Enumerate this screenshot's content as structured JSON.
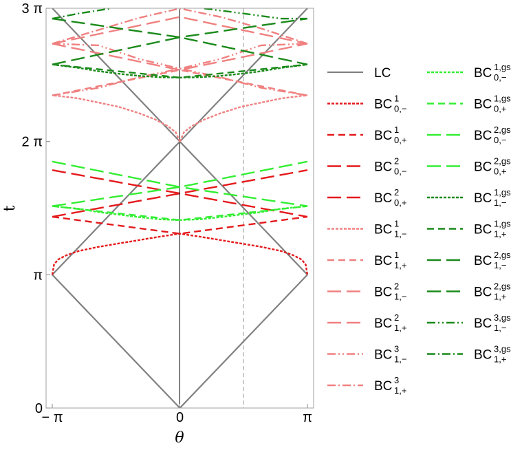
{
  "chart_data": {
    "type": "line",
    "xlabel": "θ",
    "ylabel": "t",
    "xlim": [
      -3.14159,
      3.14159
    ],
    "ylim": [
      0,
      9.42478
    ],
    "x_ticks": [
      {
        "value": -3.14159,
        "label": "− π"
      },
      {
        "value": 0,
        "label": "0"
      },
      {
        "value": 3.14159,
        "label": "π"
      }
    ],
    "y_ticks": [
      {
        "value": 0,
        "label": "0"
      },
      {
        "value": 3.14159,
        "label": "π"
      },
      {
        "value": 6.28319,
        "label": "2 π"
      },
      {
        "value": 9.42478,
        "label": "3 π"
      }
    ],
    "reference_lines": [
      {
        "axis": "x",
        "value": 0,
        "color": "#000000",
        "style": "solid"
      },
      {
        "axis": "x",
        "value": 1.5708,
        "color": "#b3b3b3",
        "style": "dashed"
      }
    ],
    "grid": false,
    "legend_position": "right",
    "series": [
      {
        "name": "LC",
        "base": "LC",
        "sup": "",
        "sub": "",
        "color": "#808080",
        "dash": "solid",
        "segments": [
          {
            "x": [
              -3.14159,
              0,
              3.14159
            ],
            "y": [
              3.14159,
              0,
              3.14159
            ]
          },
          {
            "x": [
              -3.14159,
              0,
              3.14159
            ],
            "y": [
              3.14159,
              6.28319,
              3.14159
            ]
          },
          {
            "x": [
              -3.14159,
              0,
              3.14159
            ],
            "y": [
              9.42478,
              6.28319,
              9.42478
            ]
          }
        ]
      },
      {
        "name": "BC^1_{0,-}",
        "base": "BC",
        "sup": "1",
        "sub": "0,−",
        "color": "#e41a1c",
        "dash": "dot",
        "segments": [
          {
            "x": [
              -3.14159,
              -3.1,
              -3.0,
              -2.8,
              -2.5,
              -2.0,
              -1.5,
              -1.0,
              -0.5,
              0,
              0.5,
              1.0,
              1.5,
              2.0,
              2.5,
              2.8,
              3.0,
              3.1,
              3.14159
            ],
            "y": [
              3.14,
              3.38,
              3.5,
              3.6,
              3.7,
              3.8,
              3.88,
              3.96,
              4.04,
              4.11,
              4.04,
              3.96,
              3.88,
              3.8,
              3.7,
              3.6,
              3.5,
              3.38,
              3.14
            ]
          }
        ]
      },
      {
        "name": "BC^1_{0,+}",
        "base": "BC",
        "sup": "1",
        "sub": "0,+",
        "color": "#e41a1c",
        "dash": "dash",
        "segments": [
          {
            "x": [
              -3.14159,
              0,
              3.14159
            ],
            "y": [
              4.51,
              4.11,
              4.51
            ]
          }
        ]
      },
      {
        "name": "BC^2_{0,-}",
        "base": "BC",
        "sup": "2",
        "sub": "0,−",
        "color": "#e41a1c",
        "dash": "longdash",
        "segments": [
          {
            "x": [
              -3.14159,
              0,
              3.14159
            ],
            "y": [
              4.51,
              5.06,
              4.51
            ]
          }
        ]
      },
      {
        "name": "BC^2_{0,+}",
        "base": "BC",
        "sup": "2",
        "sub": "0,+",
        "color": "#e41a1c",
        "dash": "longdash",
        "segments": [
          {
            "x": [
              -3.14159,
              0,
              3.14159
            ],
            "y": [
              5.61,
              5.06,
              5.61
            ]
          }
        ]
      },
      {
        "name": "BC^1_{1,-}",
        "base": "BC",
        "sup": "1",
        "sub": "1,−",
        "color": "#f08080",
        "dash": "dot",
        "segments": [
          {
            "x": [
              0,
              0.1,
              0.3,
              0.6,
              1.0,
              1.5,
              2.0,
              2.5,
              3.0,
              3.14159
            ],
            "y": [
              6.28,
              6.5,
              6.65,
              6.8,
              6.95,
              7.1,
              7.2,
              7.3,
              7.36,
              7.37
            ]
          },
          {
            "x": [
              0,
              -0.1,
              -0.3,
              -0.6,
              -1.0,
              -1.5,
              -2.0,
              -2.5,
              -3.0,
              -3.14159
            ],
            "y": [
              6.28,
              6.5,
              6.65,
              6.8,
              6.95,
              7.1,
              7.2,
              7.3,
              7.36,
              7.37
            ]
          }
        ]
      },
      {
        "name": "BC^1_{1,+}",
        "base": "BC",
        "sup": "1",
        "sub": "1,+",
        "color": "#f08080",
        "dash": "dash",
        "segments": [
          {
            "x": [
              -3.14159,
              0,
              3.14159
            ],
            "y": [
              7.37,
              7.97,
              7.37
            ]
          }
        ]
      },
      {
        "name": "BC^2_{1,-}",
        "base": "BC",
        "sup": "2",
        "sub": "1,−",
        "color": "#f08080",
        "dash": "longdash",
        "segments": [
          {
            "x": [
              -3.14159,
              0,
              3.14159
            ],
            "y": [
              8.59,
              7.97,
              8.59
            ]
          }
        ]
      },
      {
        "name": "BC^2_{1,+}",
        "base": "BC",
        "sup": "2",
        "sub": "1,+",
        "color": "#f08080",
        "dash": "longdash",
        "segments": [
          {
            "x": [
              -3.14159,
              0,
              3.14159
            ],
            "y": [
              8.59,
              9.22,
              8.59
            ]
          }
        ]
      },
      {
        "name": "BC^3_{1,-}",
        "base": "BC",
        "sup": "3",
        "sub": "1,−",
        "color": "#f08080",
        "dash": "dashdotdot",
        "segments": [
          {
            "x": [
              -3.14159,
              -2.0,
              -1.0,
              0,
              1.0,
              2.0,
              3.14159
            ],
            "y": [
              7.37,
              7.55,
              7.8,
              8.0,
              8.23,
              8.55,
              8.59
            ]
          },
          {
            "x": [
              -3.14159,
              -2.0,
              -1.0,
              0,
              1.0,
              2.0,
              3.14159
            ],
            "y": [
              8.59,
              8.55,
              8.23,
              8.0,
              7.8,
              7.55,
              7.37
            ]
          }
        ]
      },
      {
        "name": "BC^3_{1,+}",
        "base": "BC",
        "sup": "3",
        "sub": "1,+",
        "color": "#f08080",
        "dash": "dashdot",
        "segments": [
          {
            "x": [
              -3.14159,
              -1.0,
              0,
              1.0,
              2.0,
              3.14159
            ],
            "y": [
              8.59,
              9.2,
              9.42,
              9.22,
              8.95,
              8.59
            ]
          }
        ]
      },
      {
        "name": "BC^{1,gs}_{0,-}",
        "base": "BC",
        "sup": "1,gs",
        "sub": "0,−",
        "color": "#33ee33",
        "dash": "dot",
        "segments": [
          {
            "x": [
              -3.14159,
              -2.5,
              -2.0,
              -1.5,
              -1.0,
              -0.5,
              0,
              0.5,
              1.0,
              1.5,
              2.0,
              2.5,
              3.14159
            ],
            "y": [
              4.76,
              4.7,
              4.62,
              4.56,
              4.5,
              4.45,
              4.43,
              4.45,
              4.5,
              4.56,
              4.62,
              4.7,
              4.76
            ]
          }
        ]
      },
      {
        "name": "BC^{1,gs}_{0,+}",
        "base": "BC",
        "sup": "1,gs",
        "sub": "0,+",
        "color": "#33ee33",
        "dash": "dash",
        "segments": [
          {
            "x": [
              -3.14159,
              0,
              3.14159
            ],
            "y": [
              4.76,
              4.43,
              4.76
            ]
          }
        ]
      },
      {
        "name": "BC^{2,gs}_{0,-}",
        "base": "BC",
        "sup": "2,gs",
        "sub": "0,−",
        "color": "#33ee33",
        "dash": "longdash",
        "segments": [
          {
            "x": [
              -3.14159,
              0,
              3.14159
            ],
            "y": [
              4.76,
              5.21,
              4.76
            ]
          }
        ]
      },
      {
        "name": "BC^{2,gs}_{0,+}",
        "base": "BC",
        "sup": "2,gs",
        "sub": "0,+",
        "color": "#33ee33",
        "dash": "longdash",
        "segments": [
          {
            "x": [
              -3.14159,
              0,
              3.14159
            ],
            "y": [
              5.81,
              5.21,
              5.81
            ]
          }
        ]
      },
      {
        "name": "BC^{1,gs}_{1,-}",
        "base": "BC",
        "sup": "1,gs",
        "sub": "1,−",
        "color": "#1a8a1a",
        "dash": "dot",
        "segments": [
          {
            "x": [
              -3.14159,
              -2.5,
              -2.0,
              -1.5,
              -1.0,
              -0.5,
              0,
              0.5,
              1.0,
              1.5,
              2.0,
              2.5,
              3.14159
            ],
            "y": [
              8.1,
              8.02,
              7.94,
              7.88,
              7.83,
              7.8,
              7.79,
              7.8,
              7.83,
              7.88,
              7.94,
              8.02,
              8.1
            ]
          }
        ]
      },
      {
        "name": "BC^{1,gs}_{1,+}",
        "base": "BC",
        "sup": "1,gs",
        "sub": "1,+",
        "color": "#1a8a1a",
        "dash": "dash",
        "segments": [
          {
            "x": [
              -3.14159,
              0,
              3.14159
            ],
            "y": [
              8.1,
              7.79,
              8.1
            ]
          }
        ]
      },
      {
        "name": "BC^{2,gs}_{1,-}",
        "base": "BC",
        "sup": "2,gs",
        "sub": "1,−",
        "color": "#1a8a1a",
        "dash": "longdash",
        "segments": [
          {
            "x": [
              -3.14159,
              0,
              3.14159
            ],
            "y": [
              8.1,
              8.74,
              8.1
            ]
          }
        ]
      },
      {
        "name": "BC^{2,gs}_{1,+}",
        "base": "BC",
        "sup": "2,gs",
        "sub": "1,+",
        "color": "#1a8a1a",
        "dash": "longdash",
        "segments": [
          {
            "x": [
              -3.14159,
              0,
              3.14159
            ],
            "y": [
              9.18,
              8.74,
              9.18
            ]
          }
        ]
      },
      {
        "name": "BC^{3,gs}_{1,-}",
        "base": "BC",
        "sup": "3,gs",
        "sub": "1,−",
        "color": "#1a8a1a",
        "dash": "dashdotdot",
        "segments": [
          {
            "x": [
              0.6,
              1.5,
              2.5,
              3.14159
            ],
            "y": [
              9.42,
              9.31,
              9.18,
              9.18
            ]
          }
        ]
      },
      {
        "name": "BC^{3,gs}_{1,+}",
        "base": "BC",
        "sup": "3,gs",
        "sub": "1,+",
        "color": "#1a8a1a",
        "dash": "dashdot",
        "segments": [
          {
            "x": [
              -3.14159,
              -2.5,
              -1.7
            ],
            "y": [
              9.18,
              9.3,
              9.42
            ]
          }
        ]
      }
    ]
  }
}
